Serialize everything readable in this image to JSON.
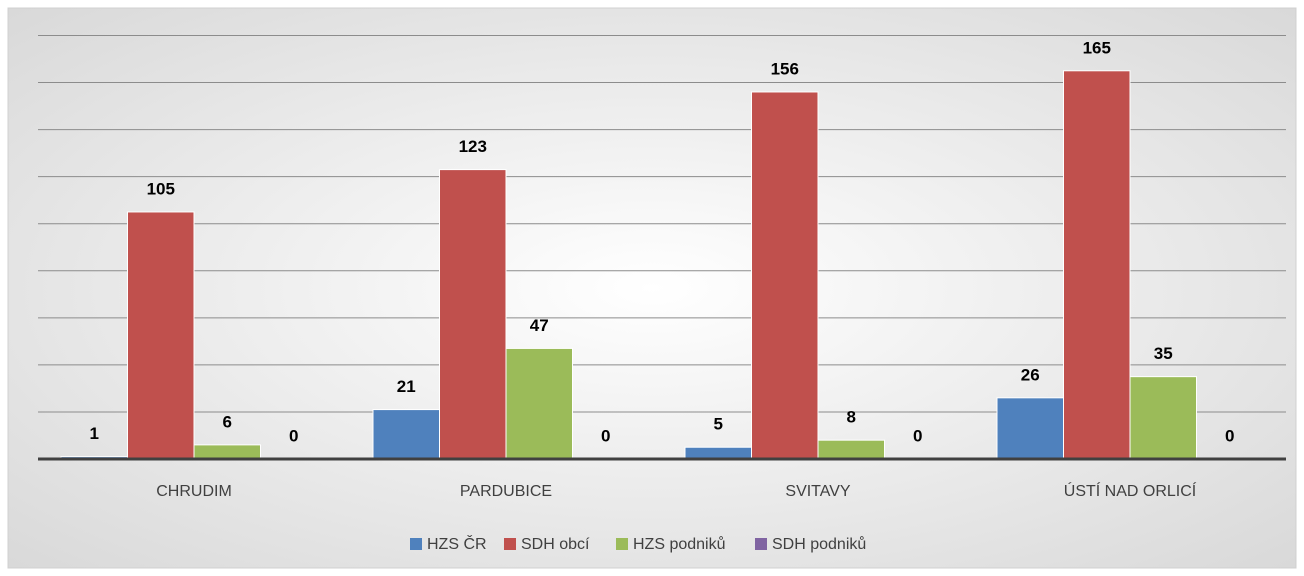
{
  "chart_data": {
    "type": "bar",
    "categories": [
      "CHRUDIM",
      "PARDUBICE",
      "SVITAVY",
      "ÚSTÍ NAD ORLICÍ"
    ],
    "series": [
      {
        "name": "HZS ČR",
        "color": "#4f81bd",
        "values": [
          1,
          21,
          5,
          26
        ]
      },
      {
        "name": "SDH obcí",
        "color": "#c0504d",
        "values": [
          105,
          123,
          156,
          165
        ]
      },
      {
        "name": "HZS podniků",
        "color": "#9bbb59",
        "values": [
          6,
          47,
          8,
          35
        ]
      },
      {
        "name": "SDH podniků",
        "color": "#8064a2",
        "values": [
          0,
          0,
          0,
          0
        ]
      }
    ],
    "ylim": [
      0,
      180
    ],
    "yticks": [
      0,
      20,
      40,
      60,
      80,
      100,
      120,
      140,
      160,
      180
    ],
    "grid": true,
    "legend": "bottom"
  }
}
